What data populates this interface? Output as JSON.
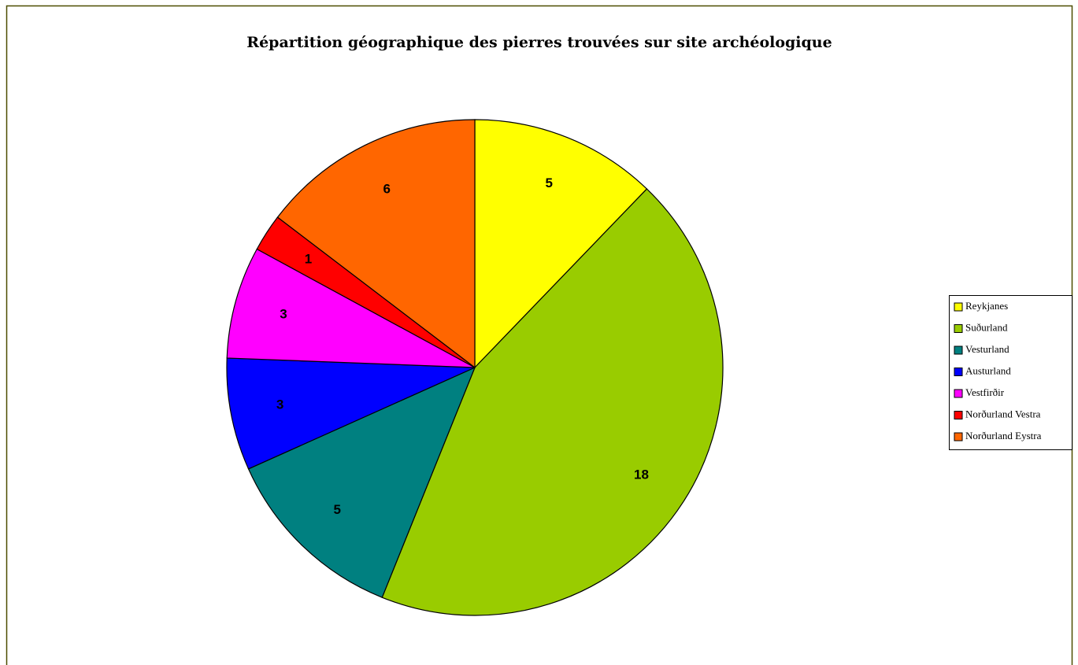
{
  "chart_data": {
    "type": "pie",
    "title": "Répartition géographique des pierres trouvées sur site archéologique",
    "categories": [
      "Reykjanes",
      "Suðurland",
      "Vesturland",
      "Austurland",
      "Vestfirðir",
      "Norðurland Vestra",
      "Norðurland Eystra"
    ],
    "values": [
      5,
      18,
      5,
      3,
      3,
      1,
      6
    ],
    "colors": [
      "#ffff00",
      "#99cc00",
      "#008080",
      "#0000ff",
      "#ff00ff",
      "#ff0000",
      "#ff6600"
    ],
    "legend": "right"
  }
}
